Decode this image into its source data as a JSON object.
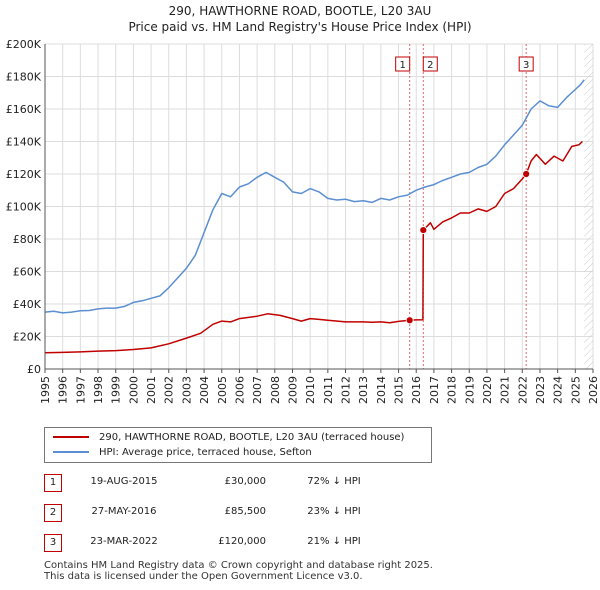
{
  "chart_data": {
    "type": "line",
    "title": "290, HAWTHORNE ROAD, BOOTLE, L20 3AU",
    "subtitle": "Price paid vs. HM Land Registry's House Price Index (HPI)",
    "xlim": [
      1995,
      2026
    ],
    "ylim": [
      0,
      200000
    ],
    "x_ticks": [
      "1995",
      "1996",
      "1997",
      "1998",
      "1999",
      "2000",
      "2001",
      "2002",
      "2003",
      "2004",
      "2005",
      "2006",
      "2007",
      "2008",
      "2009",
      "2010",
      "2011",
      "2012",
      "2013",
      "2014",
      "2015",
      "2016",
      "2017",
      "2018",
      "2019",
      "2020",
      "2021",
      "2022",
      "2023",
      "2024",
      "2025",
      "2026"
    ],
    "y_ticks": [
      {
        "v": 0,
        "label": "£0"
      },
      {
        "v": 20000,
        "label": "£20K"
      },
      {
        "v": 40000,
        "label": "£40K"
      },
      {
        "v": 60000,
        "label": "£60K"
      },
      {
        "v": 80000,
        "label": "£80K"
      },
      {
        "v": 100000,
        "label": "£100K"
      },
      {
        "v": 120000,
        "label": "£120K"
      },
      {
        "v": 140000,
        "label": "£140K"
      },
      {
        "v": 160000,
        "label": "£160K"
      },
      {
        "v": 180000,
        "label": "£180K"
      },
      {
        "v": 200000,
        "label": "£200K"
      }
    ],
    "grid": true,
    "series": [
      {
        "name": "290, HAWTHORNE ROAD, BOOTLE, L20 3AU (terraced house)",
        "color": "#c00000",
        "points": [
          [
            1995.0,
            10000
          ],
          [
            1996.0,
            10200
          ],
          [
            1997.0,
            10500
          ],
          [
            1998.0,
            11000
          ],
          [
            1999.0,
            11300
          ],
          [
            2000.0,
            12000
          ],
          [
            2001.0,
            13000
          ],
          [
            2002.0,
            15500
          ],
          [
            2003.0,
            19000
          ],
          [
            2003.8,
            22000
          ],
          [
            2004.5,
            27500
          ],
          [
            2005.0,
            29500
          ],
          [
            2005.5,
            29000
          ],
          [
            2006.0,
            31000
          ],
          [
            2007.0,
            32500
          ],
          [
            2007.6,
            34000
          ],
          [
            2008.3,
            33000
          ],
          [
            2009.0,
            31000
          ],
          [
            2009.5,
            29500
          ],
          [
            2010.0,
            31000
          ],
          [
            2010.5,
            30500
          ],
          [
            2011.0,
            30000
          ],
          [
            2012.0,
            29000
          ],
          [
            2013.0,
            29000
          ],
          [
            2013.5,
            28800
          ],
          [
            2014.0,
            29000
          ],
          [
            2014.5,
            28500
          ],
          [
            2015.0,
            29300
          ],
          [
            2015.63,
            30000
          ],
          [
            2016.0,
            30200
          ],
          [
            2016.38,
            30300
          ],
          [
            2016.4,
            85500
          ],
          [
            2016.8,
            90000
          ],
          [
            2017.0,
            86000
          ],
          [
            2017.5,
            90500
          ],
          [
            2018.0,
            93000
          ],
          [
            2018.5,
            96000
          ],
          [
            2019.0,
            96000
          ],
          [
            2019.5,
            98500
          ],
          [
            2020.0,
            97000
          ],
          [
            2020.5,
            100000
          ],
          [
            2021.0,
            108000
          ],
          [
            2021.5,
            111000
          ],
          [
            2022.0,
            117000
          ],
          [
            2022.22,
            120000
          ],
          [
            2022.5,
            128000
          ],
          [
            2022.8,
            132000
          ],
          [
            2023.3,
            126000
          ],
          [
            2023.8,
            131000
          ],
          [
            2024.3,
            128000
          ],
          [
            2024.8,
            137000
          ],
          [
            2025.2,
            138000
          ],
          [
            2025.4,
            140000
          ]
        ]
      },
      {
        "name": "HPI: Average price, terraced house, Sefton",
        "color": "#5b8fd1",
        "points": [
          [
            1995.0,
            35000
          ],
          [
            1995.5,
            35500
          ],
          [
            1996.0,
            34500
          ],
          [
            1996.5,
            35000
          ],
          [
            1997.0,
            35800
          ],
          [
            1997.5,
            36000
          ],
          [
            1998.0,
            37000
          ],
          [
            1998.5,
            37500
          ],
          [
            1999.0,
            37500
          ],
          [
            1999.5,
            38500
          ],
          [
            2000.0,
            41000
          ],
          [
            2000.5,
            42000
          ],
          [
            2001.0,
            43500
          ],
          [
            2001.5,
            45000
          ],
          [
            2002.0,
            50000
          ],
          [
            2002.5,
            56000
          ],
          [
            2003.0,
            62000
          ],
          [
            2003.5,
            70000
          ],
          [
            2004.0,
            84000
          ],
          [
            2004.5,
            98000
          ],
          [
            2005.0,
            108000
          ],
          [
            2005.5,
            106000
          ],
          [
            2006.0,
            112000
          ],
          [
            2006.5,
            114000
          ],
          [
            2007.0,
            118000
          ],
          [
            2007.5,
            121000
          ],
          [
            2008.0,
            118000
          ],
          [
            2008.5,
            115000
          ],
          [
            2009.0,
            109000
          ],
          [
            2009.5,
            108000
          ],
          [
            2010.0,
            111000
          ],
          [
            2010.5,
            109000
          ],
          [
            2011.0,
            105000
          ],
          [
            2011.5,
            104000
          ],
          [
            2012.0,
            104500
          ],
          [
            2012.5,
            103000
          ],
          [
            2013.0,
            103500
          ],
          [
            2013.5,
            102500
          ],
          [
            2014.0,
            105000
          ],
          [
            2014.5,
            104000
          ],
          [
            2015.0,
            106000
          ],
          [
            2015.5,
            107000
          ],
          [
            2016.0,
            110000
          ],
          [
            2016.5,
            112000
          ],
          [
            2017.0,
            113500
          ],
          [
            2017.5,
            116000
          ],
          [
            2018.0,
            118000
          ],
          [
            2018.5,
            120000
          ],
          [
            2019.0,
            121000
          ],
          [
            2019.5,
            124000
          ],
          [
            2020.0,
            126000
          ],
          [
            2020.5,
            131000
          ],
          [
            2021.0,
            138000
          ],
          [
            2021.5,
            144000
          ],
          [
            2022.0,
            150000
          ],
          [
            2022.5,
            160000
          ],
          [
            2023.0,
            165000
          ],
          [
            2023.5,
            162000
          ],
          [
            2024.0,
            161000
          ],
          [
            2024.5,
            167000
          ],
          [
            2025.0,
            172000
          ],
          [
            2025.3,
            175000
          ],
          [
            2025.5,
            178000
          ]
        ]
      }
    ],
    "markers": [
      {
        "id": "1",
        "x": 2015.63,
        "y": 30000
      },
      {
        "id": "2",
        "x": 2016.4,
        "y": 85500
      },
      {
        "id": "3",
        "x": 2022.22,
        "y": 120000
      }
    ]
  },
  "legend": [
    {
      "label": "290, HAWTHORNE ROAD, BOOTLE, L20 3AU (terraced house)",
      "color": "#c00000"
    },
    {
      "label": "HPI: Average price, terraced house, Sefton",
      "color": "#5b8fd1"
    }
  ],
  "sales": [
    {
      "num": "1",
      "date": "19-AUG-2015",
      "price": "£30,000",
      "hpi": "72% ↓ HPI"
    },
    {
      "num": "2",
      "date": "27-MAY-2016",
      "price": "£85,500",
      "hpi": "23% ↓ HPI"
    },
    {
      "num": "3",
      "date": "23-MAR-2022",
      "price": "£120,000",
      "hpi": "21% ↓ HPI"
    }
  ],
  "footer": {
    "line1": "Contains HM Land Registry data © Crown copyright and database right 2025.",
    "line2": "This data is licensed under the Open Government Licence v3.0."
  }
}
